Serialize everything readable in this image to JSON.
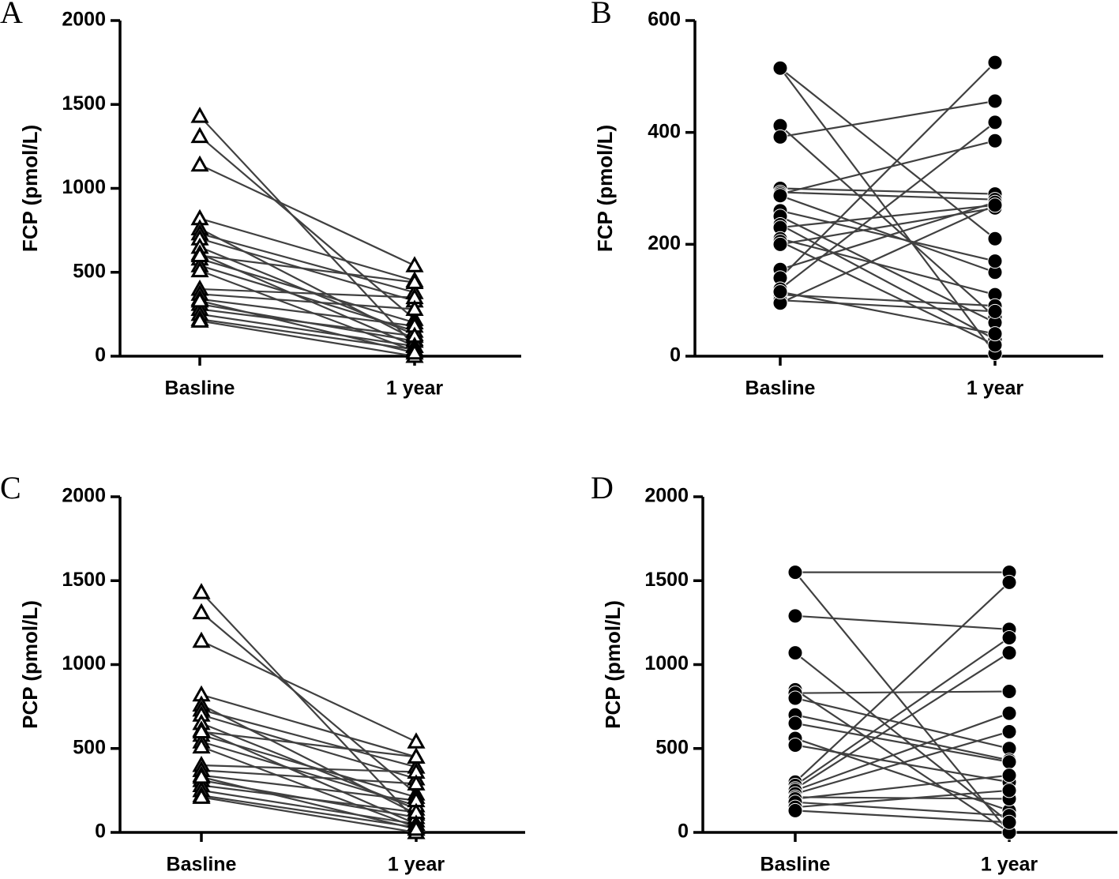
{
  "chart_data": [
    {
      "type": "paired",
      "label": "A",
      "ylabel": "FCP (pmol/L)",
      "categories": [
        "Basline",
        "1 year"
      ],
      "marker": "triangle",
      "color": "#404040",
      "ylim": [
        0,
        2000
      ],
      "yticks": [
        0,
        500,
        1000,
        1500,
        2000
      ],
      "pairs": [
        [
          1430,
          60
        ],
        [
          1310,
          220
        ],
        [
          1140,
          540
        ],
        [
          820,
          450
        ],
        [
          760,
          100
        ],
        [
          730,
          380
        ],
        [
          700,
          330
        ],
        [
          650,
          130
        ],
        [
          610,
          60
        ],
        [
          580,
          200
        ],
        [
          540,
          150
        ],
        [
          510,
          30
        ],
        [
          400,
          350
        ],
        [
          370,
          280
        ],
        [
          340,
          180
        ],
        [
          310,
          90
        ],
        [
          280,
          120
        ],
        [
          250,
          60
        ],
        [
          220,
          40
        ],
        [
          210,
          0
        ],
        [
          600,
          440
        ],
        [
          330,
          20
        ]
      ]
    },
    {
      "type": "paired",
      "label": "B",
      "ylabel": "FCP (pmol/L)",
      "categories": [
        "Basline",
        "1 year"
      ],
      "marker": "circle",
      "color": "#404040",
      "ylim": [
        0,
        600
      ],
      "yticks": [
        0,
        200,
        400,
        600
      ],
      "pairs": [
        [
          515,
          210
        ],
        [
          515,
          5
        ],
        [
          412,
          70
        ],
        [
          392,
          456
        ],
        [
          300,
          290
        ],
        [
          293,
          280
        ],
        [
          290,
          385
        ],
        [
          287,
          150
        ],
        [
          260,
          170
        ],
        [
          250,
          60
        ],
        [
          235,
          30
        ],
        [
          230,
          270
        ],
        [
          210,
          110
        ],
        [
          205,
          20
        ],
        [
          200,
          265
        ],
        [
          155,
          275
        ],
        [
          140,
          525
        ],
        [
          120,
          418
        ],
        [
          110,
          90
        ],
        [
          100,
          80
        ],
        [
          95,
          270
        ],
        [
          115,
          40
        ]
      ]
    },
    {
      "type": "paired",
      "label": "C",
      "ylabel": "PCP (pmol/L)",
      "categories": [
        "Basline",
        "1 year"
      ],
      "marker": "triangle",
      "color": "#404040",
      "ylim": [
        0,
        2000
      ],
      "yticks": [
        0,
        500,
        1000,
        1500,
        2000
      ],
      "pairs": [
        [
          1430,
          70
        ],
        [
          1310,
          230
        ],
        [
          1140,
          540
        ],
        [
          820,
          450
        ],
        [
          760,
          110
        ],
        [
          730,
          390
        ],
        [
          700,
          320
        ],
        [
          650,
          140
        ],
        [
          610,
          50
        ],
        [
          580,
          210
        ],
        [
          540,
          160
        ],
        [
          510,
          30
        ],
        [
          400,
          360
        ],
        [
          370,
          290
        ],
        [
          340,
          190
        ],
        [
          310,
          90
        ],
        [
          280,
          120
        ],
        [
          250,
          50
        ],
        [
          220,
          30
        ],
        [
          210,
          0
        ],
        [
          600,
          450
        ],
        [
          330,
          20
        ]
      ]
    },
    {
      "type": "paired",
      "label": "D",
      "ylabel": "PCP (pmol/L)",
      "categories": [
        "Basline",
        "1 year"
      ],
      "marker": "circle",
      "color": "#404040",
      "ylim": [
        0,
        2000
      ],
      "yticks": [
        0,
        500,
        1000,
        1500,
        2000
      ],
      "pairs": [
        [
          1550,
          1550
        ],
        [
          1550,
          0
        ],
        [
          1290,
          1210
        ],
        [
          1070,
          60
        ],
        [
          850,
          0
        ],
        [
          830,
          840
        ],
        [
          800,
          500
        ],
        [
          700,
          430
        ],
        [
          650,
          420
        ],
        [
          560,
          130
        ],
        [
          520,
          300
        ],
        [
          300,
          1490
        ],
        [
          280,
          1160
        ],
        [
          260,
          1070
        ],
        [
          250,
          710
        ],
        [
          230,
          600
        ],
        [
          210,
          200
        ],
        [
          200,
          340
        ],
        [
          180,
          100
        ],
        [
          150,
          250
        ],
        [
          130,
          60
        ]
      ]
    }
  ]
}
